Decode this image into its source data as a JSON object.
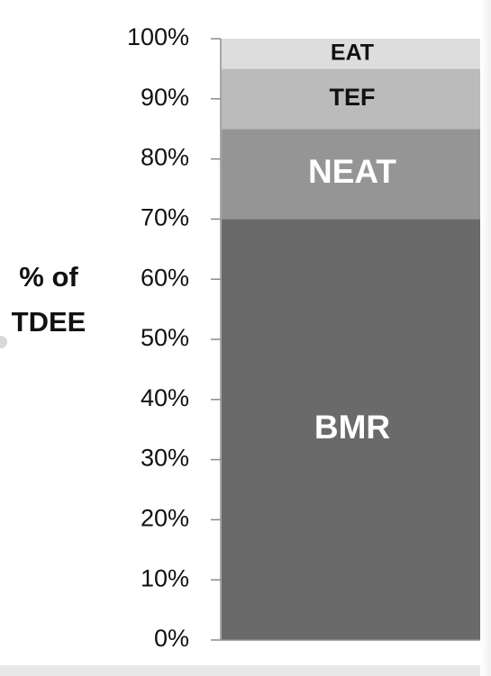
{
  "chart_data": {
    "type": "bar",
    "stacked": true,
    "categories": [
      ""
    ],
    "series": [
      {
        "name": "BMR",
        "values": [
          70
        ],
        "color": "#6a6a6a",
        "label_color": "#ffffff"
      },
      {
        "name": "NEAT",
        "values": [
          15
        ],
        "color": "#959595",
        "label_color": "#ffffff"
      },
      {
        "name": "TEF",
        "values": [
          10
        ],
        "color": "#bbbbbb",
        "label_color": "#111111"
      },
      {
        "name": "EAT",
        "values": [
          5
        ],
        "color": "#dddddd",
        "label_color": "#111111"
      }
    ],
    "title": "",
    "xlabel": "",
    "ylabel": "% of TDEE",
    "ylabel_lines": [
      "% of",
      "TDEE"
    ],
    "ylim": [
      0,
      100
    ],
    "yticks": [
      0,
      10,
      20,
      30,
      40,
      50,
      60,
      70,
      80,
      90,
      100
    ],
    "ytick_labels": [
      "0%",
      "10%",
      "20%",
      "30%",
      "40%",
      "50%",
      "60%",
      "70%",
      "80%",
      "90%",
      "100%"
    ],
    "grid": false,
    "legend": "none",
    "segment_labels": true
  }
}
